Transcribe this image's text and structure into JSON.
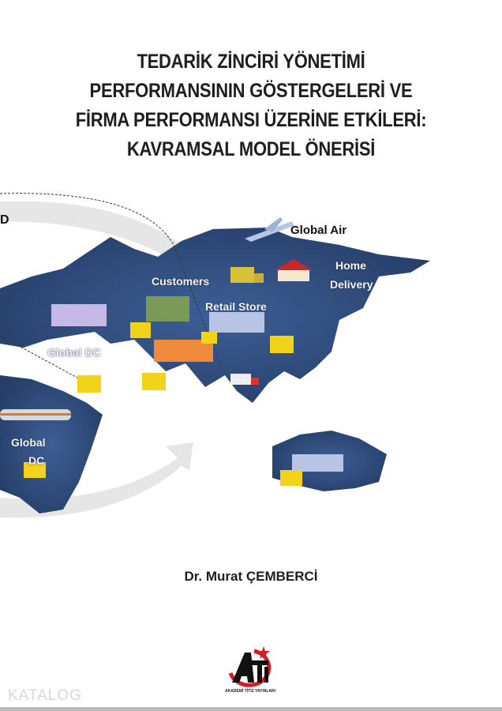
{
  "cover": {
    "title_lines": [
      "TEDARİK ZİNCİRİ YÖNETİMİ",
      "PERFORMANSININ GÖSTERGELERİ VE",
      "FİRMA PERFORMANSI ÜZERİNE ETKİLERİ:",
      "KAVRAMSAL MODEL ÖNERİSİ"
    ],
    "author": "Dr. Murat ÇEMBERCİ",
    "publisher_logo_text": "AKADEMİ TİTİZ YAYINLARI",
    "watermark": "KATALOG"
  },
  "map_illustration": {
    "labels": {
      "cut_label": "D",
      "global_air": "Global Air",
      "customers": "Customers",
      "home_delivery_1": "Home",
      "home_delivery_2": "Delivery",
      "retail_store": "Retail Store",
      "global_dc_1": "Global DC",
      "global_dc_2a": "Global",
      "global_dc_2b": "DC"
    },
    "colors": {
      "land": "#2f4b7c",
      "box": "#f2d21a",
      "arrow": "#e4e4e4"
    }
  }
}
